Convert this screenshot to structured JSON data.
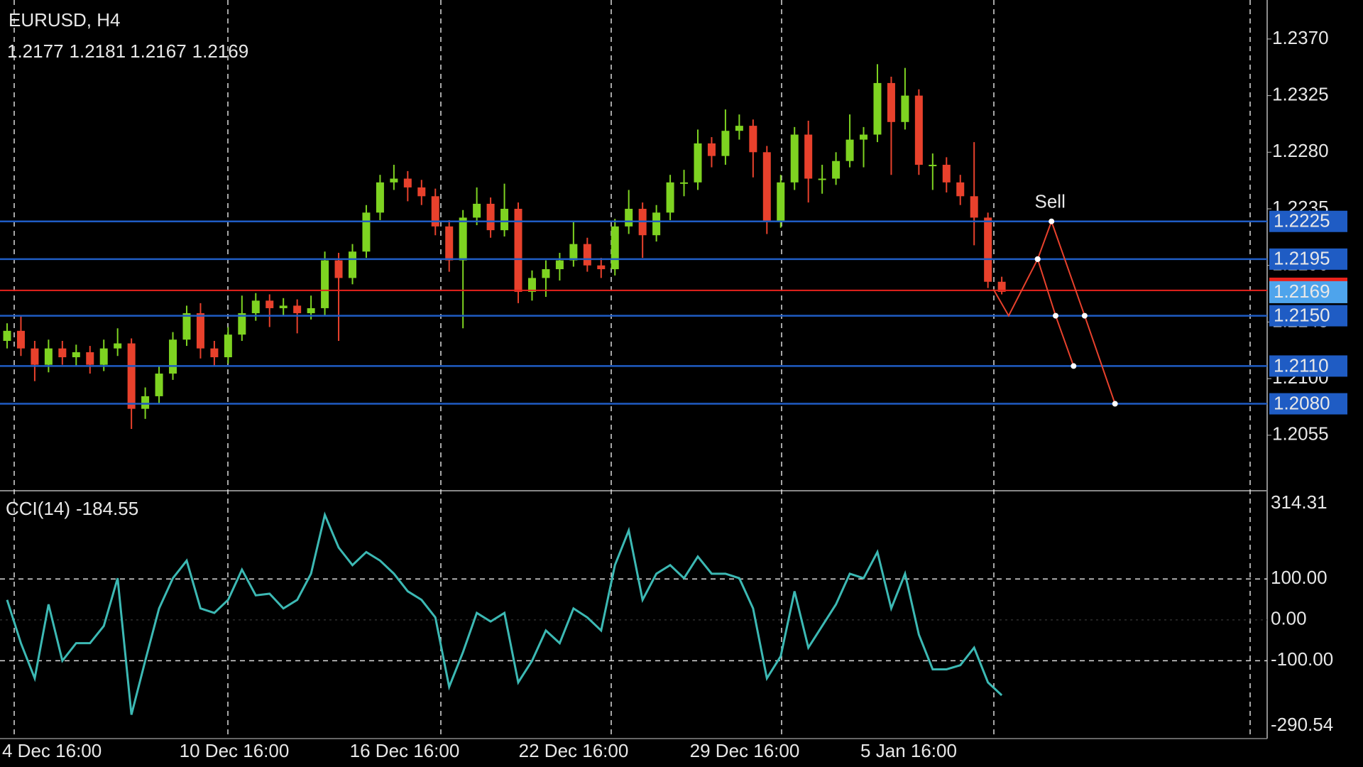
{
  "chart_data": [
    {
      "type": "candlestick",
      "title": "EURUSD, H4",
      "open": [
        1.213,
        1.2138,
        1.2124,
        1.2111,
        1.2124,
        1.2117,
        1.2121,
        1.2111,
        1.2124,
        1.2128,
        1.2076,
        1.2086,
        1.2104,
        1.2131,
        1.2152,
        1.2124,
        1.2117,
        1.2135,
        1.2152,
        1.2162,
        1.2156,
        1.2158,
        1.2152,
        1.2156,
        1.2194,
        1.218,
        1.2201,
        1.2232,
        1.2256,
        1.2259,
        1.2252,
        1.2245,
        1.2221,
        1.2194,
        1.2228,
        1.2239,
        1.2218,
        1.2235,
        1.2169,
        1.218,
        1.2187,
        1.2194,
        1.2207,
        1.219,
        1.2187,
        1.2221,
        1.2235,
        1.2214,
        1.2232,
        1.2256,
        1.2256,
        1.2287,
        1.2277,
        1.2297,
        1.2301,
        1.228,
        1.2225,
        1.2256,
        1.2294,
        1.2259,
        1.2259,
        1.2273,
        1.229,
        1.2294,
        1.2335,
        1.2304,
        1.2325,
        1.227,
        1.227,
        1.2256,
        1.2245,
        1.2228,
        1.2177
      ],
      "high": [
        1.2144,
        1.215,
        1.213,
        1.2131,
        1.213,
        1.2127,
        1.2126,
        1.2131,
        1.214,
        1.2132,
        1.2093,
        1.211,
        1.2137,
        1.2158,
        1.216,
        1.213,
        1.2141,
        1.2166,
        1.2168,
        1.2167,
        1.2164,
        1.2163,
        1.2166,
        1.2201,
        1.22,
        1.2207,
        1.2238,
        1.2262,
        1.227,
        1.2265,
        1.2258,
        1.2251,
        1.2226,
        1.2234,
        1.2252,
        1.2244,
        1.2255,
        1.224,
        1.2186,
        1.2194,
        1.22,
        1.2225,
        1.2212,
        1.2196,
        1.2227,
        1.225,
        1.224,
        1.2238,
        1.2262,
        1.2266,
        1.2298,
        1.2292,
        1.2314,
        1.231,
        1.2306,
        1.2285,
        1.2262,
        1.23,
        1.2305,
        1.227,
        1.228,
        1.231,
        1.23,
        1.235,
        1.234,
        1.2347,
        1.233,
        1.2279,
        1.2276,
        1.2262,
        1.2288,
        1.2232,
        1.2181
      ],
      "low": [
        1.2124,
        1.2118,
        1.2098,
        1.2105,
        1.2111,
        1.211,
        1.2104,
        1.2106,
        1.2118,
        1.206,
        1.2068,
        1.208,
        1.2099,
        1.2126,
        1.2116,
        1.211,
        1.2112,
        1.213,
        1.2146,
        1.2141,
        1.215,
        1.2136,
        1.2147,
        1.215,
        1.213,
        1.2175,
        1.2196,
        1.2226,
        1.225,
        1.2241,
        1.2238,
        1.2214,
        1.2185,
        1.214,
        1.2222,
        1.2212,
        1.2213,
        1.216,
        1.2162,
        1.2165,
        1.2178,
        1.2189,
        1.2185,
        1.218,
        1.2182,
        1.2215,
        1.2196,
        1.2209,
        1.2226,
        1.2245,
        1.225,
        1.2268,
        1.227,
        1.229,
        1.226,
        1.2215,
        1.222,
        1.225,
        1.224,
        1.2247,
        1.2254,
        1.2268,
        1.2268,
        1.2288,
        1.2262,
        1.2298,
        1.2262,
        1.225,
        1.2248,
        1.2238,
        1.2206,
        1.2172,
        1.2167
      ],
      "close": [
        1.2138,
        1.2124,
        1.2111,
        1.2124,
        1.2117,
        1.2121,
        1.2111,
        1.2124,
        1.2128,
        1.2076,
        1.2086,
        1.2104,
        1.2131,
        1.2152,
        1.2124,
        1.2117,
        1.2135,
        1.2152,
        1.2162,
        1.2156,
        1.2158,
        1.2152,
        1.2156,
        1.2194,
        1.218,
        1.2201,
        1.2232,
        1.2256,
        1.2259,
        1.2252,
        1.2245,
        1.2221,
        1.2194,
        1.2228,
        1.2239,
        1.2218,
        1.2235,
        1.2169,
        1.218,
        1.2187,
        1.2194,
        1.2207,
        1.219,
        1.2187,
        1.2221,
        1.2235,
        1.2214,
        1.2232,
        1.2256,
        1.2256,
        1.2287,
        1.2277,
        1.2297,
        1.2301,
        1.228,
        1.2225,
        1.2256,
        1.2294,
        1.2259,
        1.2259,
        1.2273,
        1.229,
        1.2294,
        1.2335,
        1.2304,
        1.2325,
        1.227,
        1.227,
        1.2256,
        1.2245,
        1.2228,
        1.2177,
        1.2169
      ],
      "up_color": "#7ed321",
      "down_color": "#e8412c",
      "price_line_color": "#e8231c",
      "ylim": [
        1.2012,
        1.2401
      ],
      "yticks": [
        {
          "value": 1.237,
          "label": "1.2370"
        },
        {
          "value": 1.2325,
          "label": "1.2325"
        },
        {
          "value": 1.228,
          "label": "1.2280"
        },
        {
          "value": 1.2235,
          "label": "1.2235"
        },
        {
          "value": 1.219,
          "label": "1.2190"
        },
        {
          "value": 1.2145,
          "label": "1.2145"
        },
        {
          "value": 1.21,
          "label": "1.2100"
        },
        {
          "value": 1.2055,
          "label": "1.2055"
        }
      ],
      "x_labels": [
        "4 Dec 16:00",
        "10 Dec 16:00",
        "16 Dec 16:00",
        "22 Dec 16:00",
        "29 Dec 16:00",
        "5 Jan 16:00"
      ],
      "levels": [
        {
          "value": 1.2225,
          "label": "1.2225"
        },
        {
          "value": 1.2195,
          "label": "1.2195"
        },
        {
          "value": 1.215,
          "label": "1.2150"
        },
        {
          "value": 1.211,
          "label": "1.2110"
        },
        {
          "value": 1.208,
          "label": "1.2080"
        }
      ],
      "level_color": "#1f5cc4",
      "pattern": {
        "label": "Sell",
        "color": "#e8412c",
        "lines": [
          {
            "x": [
              71.4,
              72.5,
              74.6,
              75.6,
              78.0,
              80.2
            ],
            "values": [
              1.2171,
              1.215,
              1.2195,
              1.2225,
              1.215,
              1.208
            ]
          },
          {
            "x": [
              74.6,
              75.9,
              77.2
            ],
            "values": [
              1.2195,
              1.215,
              1.211
            ]
          }
        ]
      }
    },
    {
      "type": "line",
      "series": [
        {
          "name": "CCI(14)",
          "color": "#3cb9b4",
          "values": [
            49,
            -57,
            -143,
            38,
            -100,
            -57,
            -57,
            -15,
            102,
            -232,
            -100,
            28,
            102,
            145,
            28,
            17,
            49,
            123,
            60,
            64,
            28,
            49,
            113,
            257,
            177,
            134,
            166,
            145,
            113,
            70,
            49,
            6,
            -164,
            -79,
            17,
            -4,
            17,
            -153,
            -100,
            -26,
            -57,
            28,
            6,
            -26,
            134,
            219,
            49,
            113,
            134,
            102,
            155,
            113,
            113,
            102,
            28,
            -143,
            -89,
            70,
            -68,
            -15,
            38,
            113,
            102,
            166,
            28,
            113,
            -36,
            -121,
            -121,
            -111,
            -68,
            -153,
            -184.55
          ]
        }
      ],
      "ylim": [
        -290.54,
        314.31
      ],
      "yticks": [
        314.31,
        {
          "value": 100,
          "label": "100.00"
        },
        {
          "value": 0,
          "label": "0.00"
        },
        {
          "value": -100,
          "label": "-100.00"
        },
        -290.54
      ]
    }
  ]
}
